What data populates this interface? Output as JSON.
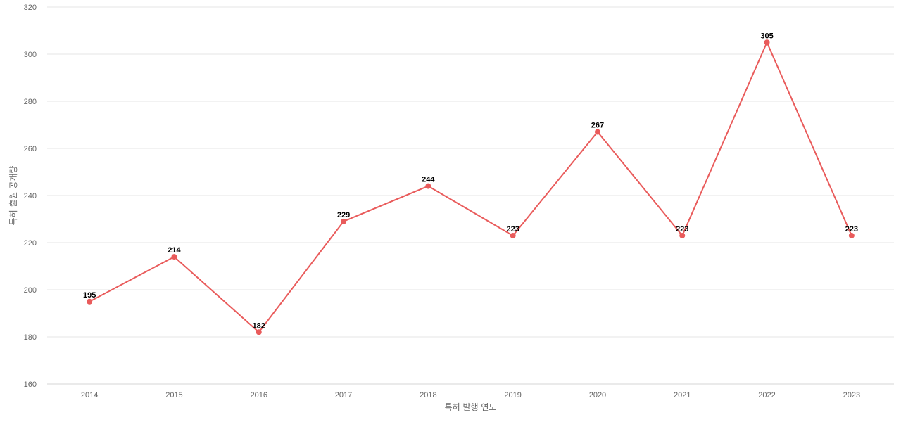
{
  "chart_data": {
    "type": "line",
    "title": "",
    "xlabel": "특허 발행 연도",
    "ylabel": "특허 출원 공개량",
    "categories": [
      "2014",
      "2015",
      "2016",
      "2017",
      "2018",
      "2019",
      "2020",
      "2021",
      "2022",
      "2023"
    ],
    "series": [
      {
        "values": [
          195,
          214,
          182,
          229,
          244,
          223,
          267,
          223,
          305,
          223
        ],
        "color": "#e95b5b"
      }
    ],
    "ylim": [
      160,
      320
    ],
    "yticks": [
      160,
      180,
      200,
      220,
      240,
      260,
      280,
      300,
      320
    ],
    "grid": true,
    "legend": "none",
    "data_labels": true
  }
}
